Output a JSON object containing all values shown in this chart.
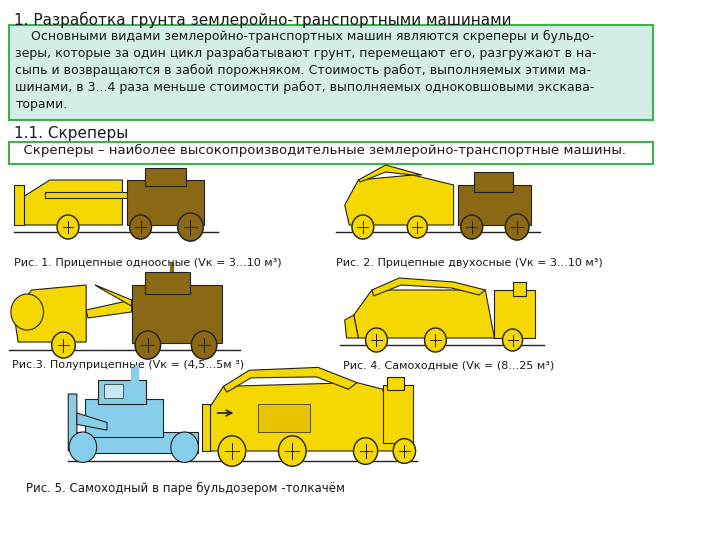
{
  "title": "1. Разработка грунта землеройно-транспортными машинами",
  "main_text": "    Основными видами землеройно-транспортных машин являются скреперы и бульдо-\nзеры, которые за один цикл разрабатывают грунт, перемещают его, разгружают в на-\nсыпь и возвращаются в забой порожняком. Стоимость работ, выполняемых этими ма-\nшинами, в 3...4 раза меньше стоимости работ, выполняемых одноковшовыми экскава-\nторами.",
  "subtitle": "1.1. Скреперы",
  "scraper_text": "  Скреперы – наиболее высокопроизводительные землеройно-транспортные машины.",
  "fig1_caption": "Рис. 1. Прицепные одноосные (Vк = 3...10 м³)",
  "fig2_caption": "Рис. 2. Прицепные двухосные (Vк = 3...10 м³)",
  "fig3_caption": "Рис.3. Полуприцепные (Vк = (4,5...5м ³)",
  "fig4_caption": "Рис. 4. Самоходные (Vк = (8...25 м³)",
  "fig5_caption": "Рис. 5. Самоходный в паре бульдозером -толкачём",
  "bg_color": "#ffffff",
  "box1_bg": "#d4ede8",
  "box2_bg": "#ffffff",
  "box_border": "#3ab54a",
  "text_color": "#1a1a1a",
  "yellow": "#f5d800",
  "brown": "#8B6914",
  "light_blue": "#87ceeb",
  "dark_outline": "#222222",
  "font_size_title": 11,
  "font_size_body": 9,
  "font_size_caption": 8
}
